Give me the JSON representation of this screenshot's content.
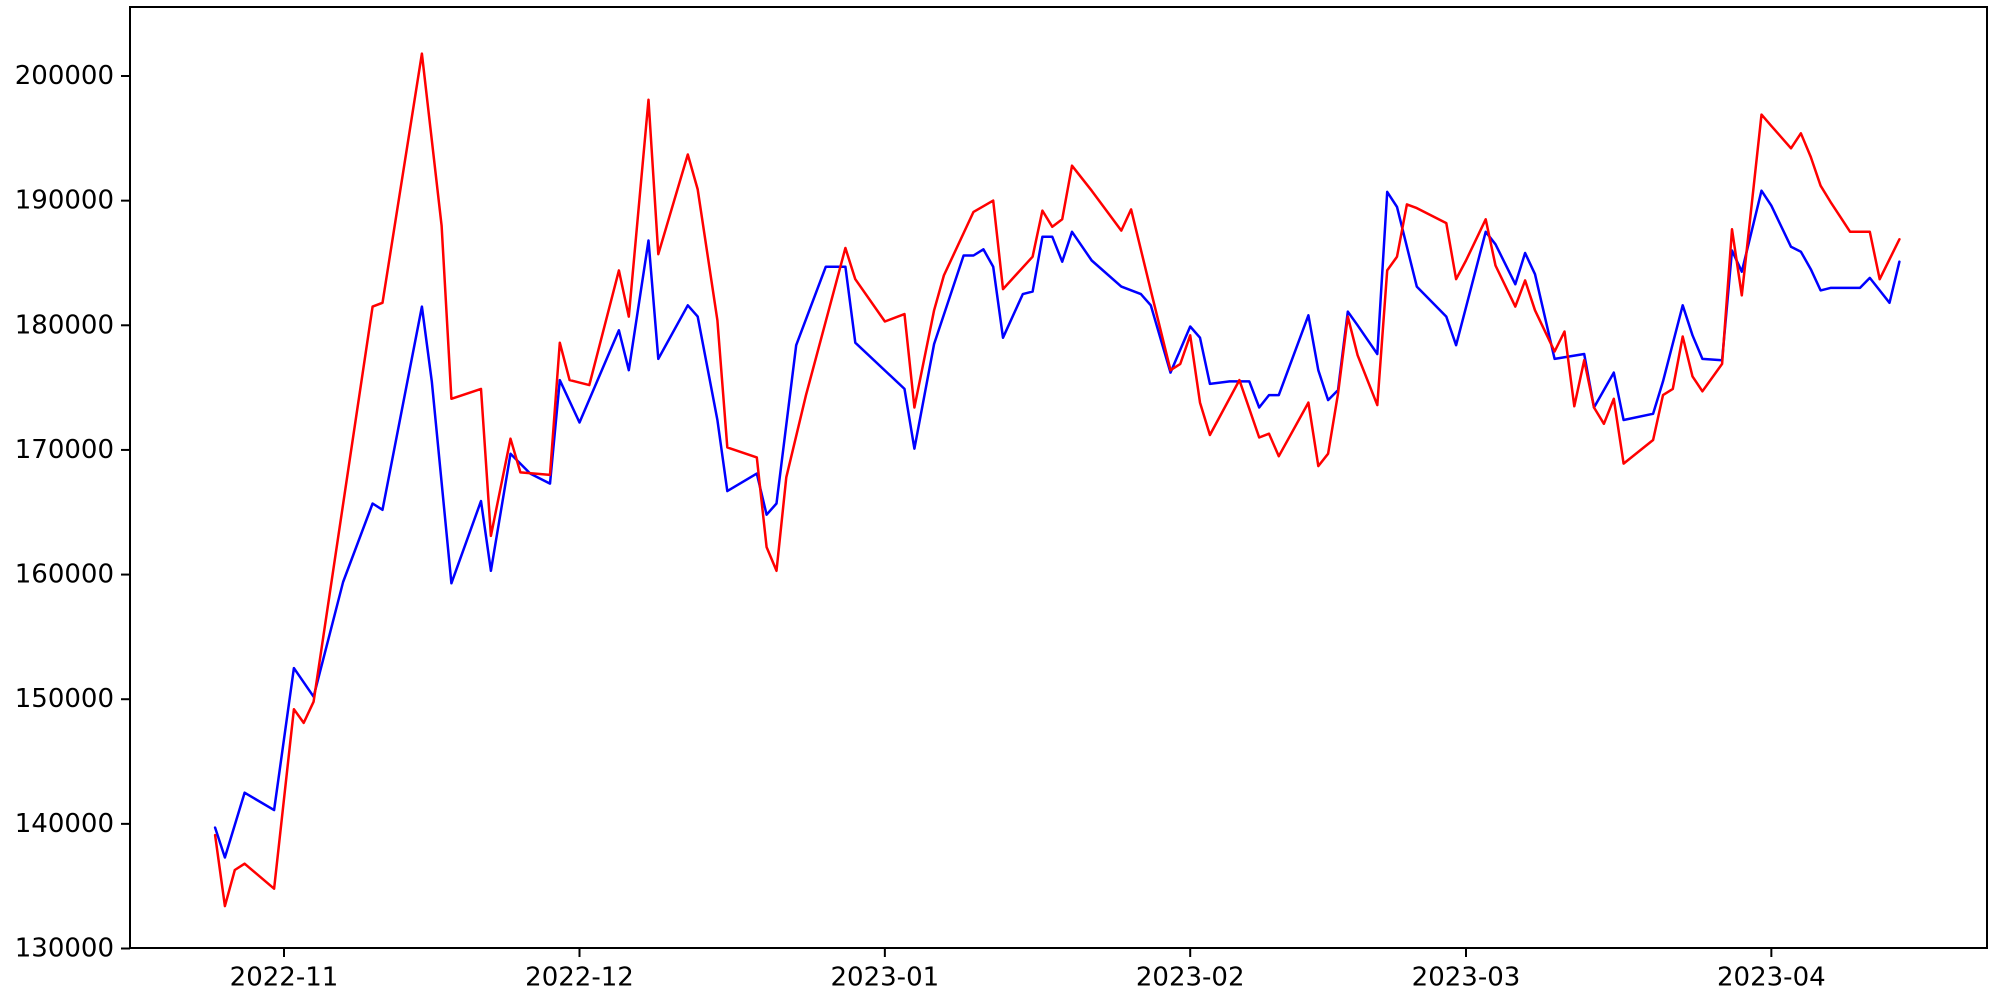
{
  "figure": {
    "title": "",
    "background_color": "#ffffff"
  },
  "chart_data": {
    "type": "line",
    "title": "",
    "xlabel": "",
    "ylabel": "",
    "grid": false,
    "legend": "none",
    "xlim_dates": [
      "2022-10-16",
      "2023-04-23"
    ],
    "ylim": [
      130000,
      205400
    ],
    "x_axis": {
      "ticks": [
        {
          "label": "2022-11",
          "date": "2022-11-01"
        },
        {
          "label": "2022-12",
          "date": "2022-12-01"
        },
        {
          "label": "2023-01",
          "date": "2023-01-01"
        },
        {
          "label": "2023-02",
          "date": "2023-02-01"
        },
        {
          "label": "2023-03",
          "date": "2023-03-01"
        },
        {
          "label": "2023-04",
          "date": "2023-04-01"
        }
      ]
    },
    "y_axis": {
      "ticks": [
        130000,
        140000,
        150000,
        160000,
        170000,
        180000,
        190000,
        200000
      ],
      "tick_labels": [
        "130000",
        "140000",
        "150000",
        "160000",
        "170000",
        "180000",
        "190000",
        "200000"
      ]
    },
    "series": [
      {
        "name": "blue",
        "color": "#0000ff",
        "points": [
          [
            "2022-10-25",
            139700
          ],
          [
            "2022-10-26",
            137300
          ],
          [
            "2022-10-28",
            142500
          ],
          [
            "2022-10-31",
            141100
          ],
          [
            "2022-11-02",
            152500
          ],
          [
            "2022-11-04",
            150200
          ],
          [
            "2022-11-07",
            159400
          ],
          [
            "2022-11-10",
            165700
          ],
          [
            "2022-11-11",
            165200
          ],
          [
            "2022-11-15",
            181500
          ],
          [
            "2022-11-16",
            175500
          ],
          [
            "2022-11-18",
            159300
          ],
          [
            "2022-11-21",
            165900
          ],
          [
            "2022-11-22",
            160300
          ],
          [
            "2022-11-24",
            169700
          ],
          [
            "2022-11-26",
            168100
          ],
          [
            "2022-11-28",
            167300
          ],
          [
            "2022-11-29",
            175600
          ],
          [
            "2022-12-01",
            172200
          ],
          [
            "2022-12-05",
            179600
          ],
          [
            "2022-12-06",
            176400
          ],
          [
            "2022-12-08",
            186800
          ],
          [
            "2022-12-09",
            177300
          ],
          [
            "2022-12-12",
            181600
          ],
          [
            "2022-12-13",
            180700
          ],
          [
            "2022-12-15",
            172400
          ],
          [
            "2022-12-16",
            166700
          ],
          [
            "2022-12-19",
            168100
          ],
          [
            "2022-12-20",
            164800
          ],
          [
            "2022-12-21",
            165700
          ],
          [
            "2022-12-23",
            178400
          ],
          [
            "2022-12-26",
            184700
          ],
          [
            "2022-12-28",
            184700
          ],
          [
            "2022-12-29",
            178600
          ],
          [
            "2023-01-03",
            174900
          ],
          [
            "2023-01-04",
            170100
          ],
          [
            "2023-01-06",
            178500
          ],
          [
            "2023-01-09",
            185600
          ],
          [
            "2023-01-10",
            185600
          ],
          [
            "2023-01-11",
            186100
          ],
          [
            "2023-01-12",
            184700
          ],
          [
            "2023-01-13",
            179000
          ],
          [
            "2023-01-15",
            182500
          ],
          [
            "2023-01-16",
            182700
          ],
          [
            "2023-01-17",
            187100
          ],
          [
            "2023-01-18",
            187100
          ],
          [
            "2023-01-19",
            185100
          ],
          [
            "2023-01-20",
            187500
          ],
          [
            "2023-01-22",
            185200
          ],
          [
            "2023-01-25",
            183100
          ],
          [
            "2023-01-27",
            182500
          ],
          [
            "2023-01-28",
            181600
          ],
          [
            "2023-01-30",
            176200
          ],
          [
            "2023-02-01",
            179900
          ],
          [
            "2023-02-02",
            179000
          ],
          [
            "2023-02-03",
            175300
          ],
          [
            "2023-02-05",
            175500
          ],
          [
            "2023-02-07",
            175500
          ],
          [
            "2023-02-08",
            173400
          ],
          [
            "2023-02-09",
            174400
          ],
          [
            "2023-02-10",
            174400
          ],
          [
            "2023-02-13",
            180800
          ],
          [
            "2023-02-14",
            176400
          ],
          [
            "2023-02-15",
            174000
          ],
          [
            "2023-02-16",
            174800
          ],
          [
            "2023-02-17",
            181100
          ],
          [
            "2023-02-18",
            180000
          ],
          [
            "2023-02-20",
            177700
          ],
          [
            "2023-02-21",
            190700
          ],
          [
            "2023-02-22",
            189500
          ],
          [
            "2023-02-24",
            183100
          ],
          [
            "2023-02-27",
            180700
          ],
          [
            "2023-02-28",
            178400
          ],
          [
            "2023-03-03",
            187500
          ],
          [
            "2023-03-04",
            186500
          ],
          [
            "2023-03-06",
            183300
          ],
          [
            "2023-03-07",
            185800
          ],
          [
            "2023-03-08",
            184100
          ],
          [
            "2023-03-10",
            177300
          ],
          [
            "2023-03-13",
            177700
          ],
          [
            "2023-03-14",
            173400
          ],
          [
            "2023-03-16",
            176200
          ],
          [
            "2023-03-17",
            172400
          ],
          [
            "2023-03-20",
            172900
          ],
          [
            "2023-03-21",
            175500
          ],
          [
            "2023-03-23",
            181600
          ],
          [
            "2023-03-24",
            179200
          ],
          [
            "2023-03-25",
            177300
          ],
          [
            "2023-03-27",
            177200
          ],
          [
            "2023-03-28",
            186000
          ],
          [
            "2023-03-29",
            184300
          ],
          [
            "2023-03-31",
            190800
          ],
          [
            "2023-04-01",
            189600
          ],
          [
            "2023-04-03",
            186300
          ],
          [
            "2023-04-04",
            185900
          ],
          [
            "2023-04-05",
            184500
          ],
          [
            "2023-04-06",
            182800
          ],
          [
            "2023-04-07",
            183000
          ],
          [
            "2023-04-10",
            183000
          ],
          [
            "2023-04-11",
            183800
          ],
          [
            "2023-04-12",
            182800
          ],
          [
            "2023-04-13",
            181800
          ],
          [
            "2023-04-14",
            185100
          ]
        ]
      },
      {
        "name": "red",
        "color": "#ff0000",
        "points": [
          [
            "2022-10-25",
            139100
          ],
          [
            "2022-10-26",
            133400
          ],
          [
            "2022-10-27",
            136300
          ],
          [
            "2022-10-28",
            136800
          ],
          [
            "2022-10-31",
            134800
          ],
          [
            "2022-11-02",
            149200
          ],
          [
            "2022-11-03",
            148100
          ],
          [
            "2022-11-04",
            149800
          ],
          [
            "2022-11-10",
            181500
          ],
          [
            "2022-11-11",
            181800
          ],
          [
            "2022-11-15",
            201800
          ],
          [
            "2022-11-17",
            188000
          ],
          [
            "2022-11-18",
            174100
          ],
          [
            "2022-11-21",
            174900
          ],
          [
            "2022-11-22",
            163100
          ],
          [
            "2022-11-24",
            170900
          ],
          [
            "2022-11-25",
            168200
          ],
          [
            "2022-11-28",
            168000
          ],
          [
            "2022-11-29",
            178600
          ],
          [
            "2022-11-30",
            175600
          ],
          [
            "2022-12-02",
            175200
          ],
          [
            "2022-12-05",
            184400
          ],
          [
            "2022-12-06",
            180700
          ],
          [
            "2022-12-08",
            198100
          ],
          [
            "2022-12-09",
            185700
          ],
          [
            "2022-12-12",
            193700
          ],
          [
            "2022-12-13",
            190900
          ],
          [
            "2022-12-15",
            180400
          ],
          [
            "2022-12-16",
            170200
          ],
          [
            "2022-12-19",
            169400
          ],
          [
            "2022-12-20",
            162200
          ],
          [
            "2022-12-21",
            160300
          ],
          [
            "2022-12-22",
            167800
          ],
          [
            "2022-12-24",
            174400
          ],
          [
            "2022-12-28",
            186200
          ],
          [
            "2022-12-29",
            183700
          ],
          [
            "2023-01-01",
            180300
          ],
          [
            "2023-01-03",
            180900
          ],
          [
            "2023-01-04",
            173400
          ],
          [
            "2023-01-06",
            181200
          ],
          [
            "2023-01-07",
            184000
          ],
          [
            "2023-01-10",
            189100
          ],
          [
            "2023-01-12",
            190000
          ],
          [
            "2023-01-13",
            182900
          ],
          [
            "2023-01-16",
            185500
          ],
          [
            "2023-01-17",
            189200
          ],
          [
            "2023-01-18",
            187900
          ],
          [
            "2023-01-19",
            188500
          ],
          [
            "2023-01-20",
            192800
          ],
          [
            "2023-01-22",
            190800
          ],
          [
            "2023-01-25",
            187600
          ],
          [
            "2023-01-26",
            189300
          ],
          [
            "2023-01-28",
            182800
          ],
          [
            "2023-01-30",
            176400
          ],
          [
            "2023-01-31",
            176900
          ],
          [
            "2023-02-01",
            179200
          ],
          [
            "2023-02-02",
            173800
          ],
          [
            "2023-02-03",
            171200
          ],
          [
            "2023-02-06",
            175600
          ],
          [
            "2023-02-08",
            171000
          ],
          [
            "2023-02-09",
            171300
          ],
          [
            "2023-02-10",
            169500
          ],
          [
            "2023-02-13",
            173800
          ],
          [
            "2023-02-14",
            168700
          ],
          [
            "2023-02-15",
            169700
          ],
          [
            "2023-02-16",
            174500
          ],
          [
            "2023-02-17",
            180700
          ],
          [
            "2023-02-18",
            177600
          ],
          [
            "2023-02-20",
            173600
          ],
          [
            "2023-02-21",
            184400
          ],
          [
            "2023-02-22",
            185500
          ],
          [
            "2023-02-23",
            189700
          ],
          [
            "2023-02-24",
            189400
          ],
          [
            "2023-02-27",
            188200
          ],
          [
            "2023-02-28",
            183700
          ],
          [
            "2023-03-01",
            185200
          ],
          [
            "2023-03-03",
            188500
          ],
          [
            "2023-03-04",
            184800
          ],
          [
            "2023-03-06",
            181500
          ],
          [
            "2023-03-07",
            183600
          ],
          [
            "2023-03-08",
            181200
          ],
          [
            "2023-03-10",
            177900
          ],
          [
            "2023-03-11",
            179500
          ],
          [
            "2023-03-12",
            173500
          ],
          [
            "2023-03-13",
            177200
          ],
          [
            "2023-03-14",
            173400
          ],
          [
            "2023-03-15",
            172100
          ],
          [
            "2023-03-16",
            174100
          ],
          [
            "2023-03-17",
            168900
          ],
          [
            "2023-03-20",
            170800
          ],
          [
            "2023-03-21",
            174400
          ],
          [
            "2023-03-22",
            174900
          ],
          [
            "2023-03-23",
            179100
          ],
          [
            "2023-03-24",
            175900
          ],
          [
            "2023-03-25",
            174700
          ],
          [
            "2023-03-27",
            176900
          ],
          [
            "2023-03-28",
            187700
          ],
          [
            "2023-03-29",
            182400
          ],
          [
            "2023-03-31",
            196900
          ],
          [
            "2023-04-01",
            196000
          ],
          [
            "2023-04-03",
            194200
          ],
          [
            "2023-04-04",
            195400
          ],
          [
            "2023-04-05",
            193500
          ],
          [
            "2023-04-06",
            191200
          ],
          [
            "2023-04-07",
            189900
          ],
          [
            "2023-04-08",
            188700
          ],
          [
            "2023-04-09",
            187500
          ],
          [
            "2023-04-11",
            187500
          ],
          [
            "2023-04-12",
            183700
          ],
          [
            "2023-04-14",
            186900
          ]
        ]
      }
    ]
  }
}
